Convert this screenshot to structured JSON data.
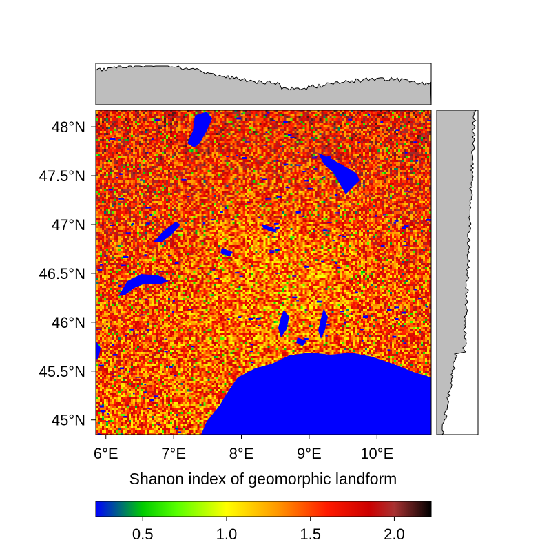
{
  "map": {
    "xlabel": "Shanon index of geomorphic landform",
    "x_ticks": [
      {
        "value": 6,
        "label": "6°E"
      },
      {
        "value": 7,
        "label": "7°E"
      },
      {
        "value": 8,
        "label": "8°E"
      },
      {
        "value": 9,
        "label": "9°E"
      },
      {
        "value": 10,
        "label": "10°E"
      }
    ],
    "y_ticks": [
      {
        "value": 48,
        "label": "48°N"
      },
      {
        "value": 47.5,
        "label": "47.5°N"
      },
      {
        "value": 47,
        "label": "47°N"
      },
      {
        "value": 46.5,
        "label": "46.5°N"
      },
      {
        "value": 46,
        "label": "46°N"
      },
      {
        "value": 45.5,
        "label": "45.5°N"
      },
      {
        "value": 45,
        "label": "45°N"
      }
    ],
    "xlim": [
      5.85,
      10.8
    ],
    "ylim": [
      44.85,
      48.17
    ],
    "water_color": "#0000ff",
    "lakes": [
      {
        "name": "Lake Geneva",
        "lon": 6.55,
        "lat": 46.43
      },
      {
        "name": "Lake Neuchatel",
        "lon": 6.85,
        "lat": 46.93
      },
      {
        "name": "Lake Constance",
        "lon": 9.35,
        "lat": 47.62
      },
      {
        "name": "Lake Constance Untersee",
        "lon": 9.1,
        "lat": 47.68
      },
      {
        "name": "Lake Como",
        "lon": 9.27,
        "lat": 45.95
      },
      {
        "name": "Lake Maggiore",
        "lon": 8.62,
        "lat": 45.9
      },
      {
        "name": "Lake Zurich",
        "lon": 8.7,
        "lat": 47.25
      },
      {
        "name": "Po plain water mask",
        "lon": 9.2,
        "lat": 45.25
      }
    ]
  },
  "colorbar": {
    "range": [
      0.22,
      2.22
    ],
    "ticks": [
      {
        "value": 0.5,
        "label": "0.5"
      },
      {
        "value": 1.0,
        "label": "1.0"
      },
      {
        "value": 1.5,
        "label": "1.5"
      },
      {
        "value": 2.0,
        "label": "2.0"
      }
    ],
    "stops": [
      {
        "value": 0.22,
        "color": "#0000ff"
      },
      {
        "value": 0.5,
        "color": "#00cc00"
      },
      {
        "value": 0.7,
        "color": "#55ff00"
      },
      {
        "value": 1.0,
        "color": "#ffff00"
      },
      {
        "value": 1.3,
        "color": "#ff9900"
      },
      {
        "value": 1.6,
        "color": "#ff1a00"
      },
      {
        "value": 1.85,
        "color": "#cc0000"
      },
      {
        "value": 2.0,
        "color": "#a83232"
      },
      {
        "value": 2.22,
        "color": "#000000"
      }
    ]
  },
  "marginals": {
    "fill": "#bebebe"
  }
}
